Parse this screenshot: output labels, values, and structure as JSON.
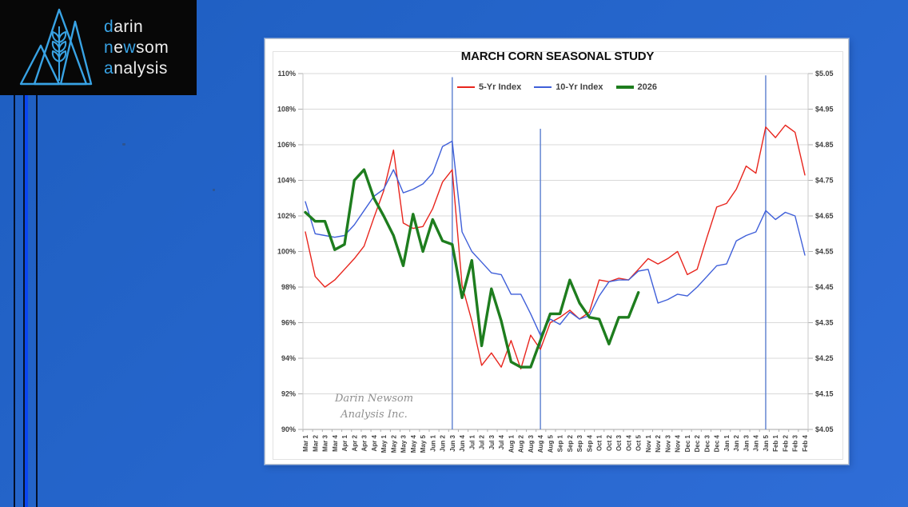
{
  "logo": {
    "lines": [
      {
        "segments": [
          {
            "text": "d",
            "accent": true
          },
          {
            "text": "arin",
            "accent": false
          }
        ]
      },
      {
        "segments": [
          {
            "text": "n",
            "accent": true
          },
          {
            "text": "e",
            "accent": false
          },
          {
            "text": "w",
            "accent": true
          },
          {
            "text": "som",
            "accent": false
          }
        ]
      },
      {
        "segments": [
          {
            "text": "a",
            "accent": true
          },
          {
            "text": "nalysis",
            "accent": false
          }
        ]
      }
    ],
    "accent_color": "#38a3e5",
    "text_color": "#ededed"
  },
  "chart": {
    "title": "MARCH CORN SEASONAL STUDY",
    "watermark": [
      "Darin Newsom",
      "Analysis Inc."
    ]
  },
  "chart_data": {
    "type": "line",
    "title": "MARCH CORN SEASONAL STUDY",
    "legend_position": "top",
    "grid": true,
    "categories": [
      "Mar 1",
      "Mar 2",
      "Mar 3",
      "Mar 4",
      "Apr 1",
      "Apr 2",
      "Apr 3",
      "Apr 4",
      "May 1",
      "May 2",
      "May 3",
      "May 4",
      "May 5",
      "Jun 1",
      "Jun 2",
      "Jun 3",
      "Jun 4",
      "Jul 1",
      "Jul 2",
      "Jul 3",
      "Jul 4",
      "Aug 1",
      "Aug 2",
      "Aug 3",
      "Aug 4",
      "Aug 5",
      "Sep 1",
      "Sep 2",
      "Sep 3",
      "Sep 4",
      "Oct 1",
      "Oct 2",
      "Oct 3",
      "Oct 4",
      "Oct 5",
      "Nov 1",
      "Nov 2",
      "Nov 3",
      "Nov 4",
      "Dec 1",
      "Dec 2",
      "Dec 3",
      "Dec 4",
      "Jan 1",
      "Jan 2",
      "Jan 3",
      "Jan 4",
      "Jan 5",
      "Feb 1",
      "Feb 2",
      "Feb 3",
      "Feb 4"
    ],
    "y_left": {
      "min": 90,
      "max": 110,
      "step": 2,
      "unit": "%",
      "labels": [
        "110%",
        "108%",
        "106%",
        "104%",
        "102%",
        "100%",
        "98%",
        "96%",
        "94%",
        "92%",
        "90%"
      ]
    },
    "y_right": {
      "unit": "$",
      "labels": [
        "$5.05",
        "$4.95",
        "$4.85",
        "$4.75",
        "$4.65",
        "$4.55",
        "$4.45",
        "$4.35",
        "$4.25",
        "$4.15",
        "$4.05"
      ]
    },
    "series": [
      {
        "name": "5-Yr Index",
        "color": "#e8251d",
        "width": 1.4,
        "values": [
          101.1,
          98.6,
          98.0,
          98.4,
          99.0,
          99.6,
          100.3,
          101.9,
          103.4,
          105.7,
          101.6,
          101.3,
          101.4,
          102.4,
          103.9,
          104.6,
          98.1,
          96.1,
          93.6,
          94.3,
          93.5,
          95.0,
          93.4,
          95.3,
          94.5,
          96.0,
          96.3,
          96.7,
          96.2,
          96.6,
          98.4,
          98.3,
          98.5,
          98.4,
          99.0,
          99.6,
          99.3,
          99.6,
          100.0,
          98.7,
          99.0,
          100.8,
          102.5,
          102.7,
          103.5,
          104.8,
          104.4,
          107.0,
          106.4,
          107.1,
          106.7,
          104.3
        ]
      },
      {
        "name": "10-Yr Index",
        "color": "#3f5fd9",
        "width": 1.4,
        "values": [
          102.8,
          101.0,
          100.9,
          100.8,
          100.9,
          101.5,
          102.3,
          103.1,
          103.5,
          104.6,
          103.3,
          103.5,
          103.8,
          104.4,
          105.9,
          106.2,
          101.1,
          100.0,
          99.4,
          98.8,
          98.7,
          97.6,
          97.6,
          96.5,
          95.3,
          96.2,
          95.9,
          96.6,
          96.2,
          96.4,
          97.5,
          98.3,
          98.4,
          98.4,
          98.9,
          99.0,
          97.1,
          97.3,
          97.6,
          97.5,
          98.0,
          98.6,
          99.2,
          99.3,
          100.6,
          100.9,
          101.1,
          102.3,
          101.8,
          102.2,
          102.0,
          99.8
        ]
      },
      {
        "name": "2026",
        "color": "#1e7d1e",
        "width": 3.4,
        "values": [
          102.2,
          101.7,
          101.7,
          100.1,
          100.4,
          104.0,
          104.6,
          103.0,
          102.0,
          100.9,
          99.2,
          102.1,
          100.0,
          101.8,
          100.6,
          100.4,
          97.4,
          99.5,
          94.7,
          97.9,
          96.1,
          93.8,
          93.5,
          93.5,
          95.0,
          96.5,
          96.5,
          98.4,
          97.1,
          96.3,
          96.2,
          94.8,
          96.3,
          96.3,
          97.7,
          null,
          null,
          null,
          null,
          null,
          null,
          null,
          null,
          null,
          null,
          null,
          null,
          null,
          null,
          null,
          null,
          null
        ]
      }
    ],
    "vertical_lines": [
      {
        "category": "Jun 3",
        "top_pct": 109.8
      },
      {
        "category": "Aug 4",
        "top_pct": 106.9
      },
      {
        "category": "Jan 5",
        "top_pct": 109.9
      }
    ],
    "watermark": [
      "Darin Newsom",
      "Analysis Inc."
    ]
  }
}
